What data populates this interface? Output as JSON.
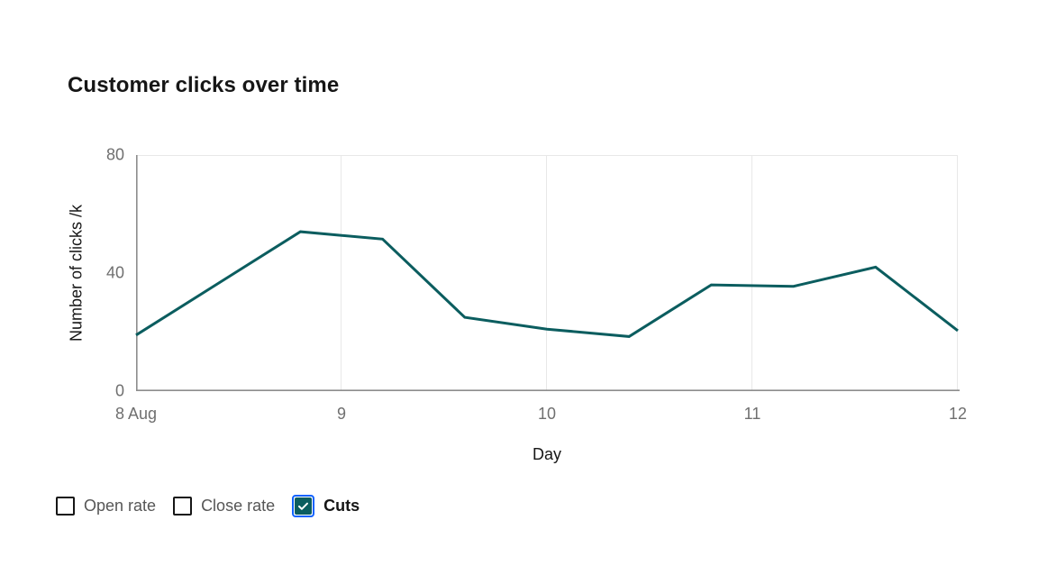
{
  "page": {
    "title": "Customer clicks over time"
  },
  "chart_data": {
    "type": "line",
    "title": "Customer clicks over time",
    "xlabel": "Day",
    "ylabel": "Number of clicks /k",
    "xlim": [
      8,
      12
    ],
    "ylim": [
      0,
      80
    ],
    "x_ticks": [
      {
        "value": 8,
        "label": "8 Aug"
      },
      {
        "value": 9,
        "label": "9"
      },
      {
        "value": 10,
        "label": "10"
      },
      {
        "value": 11,
        "label": "11"
      },
      {
        "value": 12,
        "label": "12"
      }
    ],
    "y_ticks": [
      {
        "value": 0,
        "label": "0"
      },
      {
        "value": 40,
        "label": "40"
      },
      {
        "value": 80,
        "label": "80"
      }
    ],
    "grid": {
      "vertical": true,
      "horizontal": "top-edge-only"
    },
    "legend_position": "bottom-left",
    "series": [
      {
        "name": "Cuts",
        "color": "#0b5d5f",
        "x": [
          8.0,
          8.8,
          9.2,
          9.6,
          10.0,
          10.4,
          10.8,
          11.2,
          11.6,
          12.0
        ],
        "values": [
          19,
          54,
          51.5,
          25,
          21,
          18.5,
          36,
          35.5,
          42,
          20.5
        ]
      }
    ]
  },
  "legend": {
    "items": [
      {
        "label": "Open rate",
        "checked": false
      },
      {
        "label": "Close rate",
        "checked": false
      },
      {
        "label": "Cuts",
        "checked": true
      }
    ]
  },
  "colors": {
    "series_teal": "#0b5d5f",
    "focus_ring_blue": "#0f62fe",
    "axis_gray": "#8d8d8d",
    "gridline_gray": "#e8e8e8",
    "tick_label_gray": "#6f6f6f",
    "text_primary": "#161616",
    "legend_label_gray": "#565656"
  }
}
